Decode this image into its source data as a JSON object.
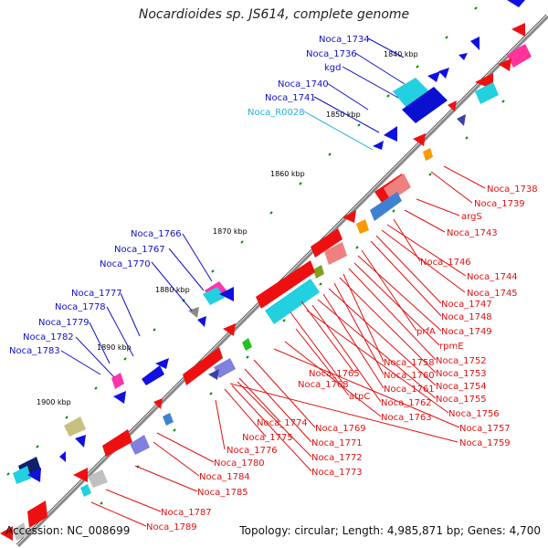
{
  "title": "Nocardioides sp. JS614, complete genome",
  "accession": "Accession: NC_008699",
  "summary": "Topology: circular; Length: 4,985,871 bp; Genes: 4,700",
  "colors": {
    "backbone": "#7f7f7f",
    "plus_label": "#1010c8",
    "minus_label": "#e01010",
    "rna_label": "#20b0e0",
    "tick": "#118811"
  },
  "kbp_labels": [
    "1840 kbp",
    "1850 kbp",
    "1860 kbp",
    "1870 kbp",
    "1880 kbp",
    "1890 kbp",
    "1900 kbp"
  ],
  "plus_strand_labels": [
    "Noca_1734",
    "Noca_1736",
    "kgd",
    "Noca_1740",
    "Noca_1741",
    "Noca_R0028",
    "Noca_1766",
    "Noca_1767",
    "Noca_1770",
    "Noca_1777",
    "Noca_1778",
    "Noca_1779",
    "Noca_1782",
    "Noca_1783"
  ],
  "minus_strand_labels": [
    "Noca_1738",
    "Noca_1739",
    "argS",
    "Noca_1743",
    "Noca_1746",
    "Noca_1744",
    "Noca_1745",
    "Noca_1747",
    "Noca_1748",
    "prfA",
    "Noca_1749",
    "rpmE",
    "Noca_1752",
    "Noca_1758",
    "Noca_1753",
    "Noca_1765",
    "Noca_1760",
    "Noca_1754",
    "Noca_1768",
    "Noca_1761",
    "Noca_1755",
    "atpC",
    "Noca_1762",
    "Noca_1756",
    "Noca_1763",
    "Noca_1769",
    "Noca_1757",
    "Noca_1774",
    "Noca_1759",
    "Noca_1775",
    "Noca_1771",
    "Noca_1776",
    "Noca_1772",
    "Noca_1780",
    "Noca_1773",
    "Noca_1784",
    "Noca_1785",
    "Noca_1787",
    "Noca_1789"
  ]
}
